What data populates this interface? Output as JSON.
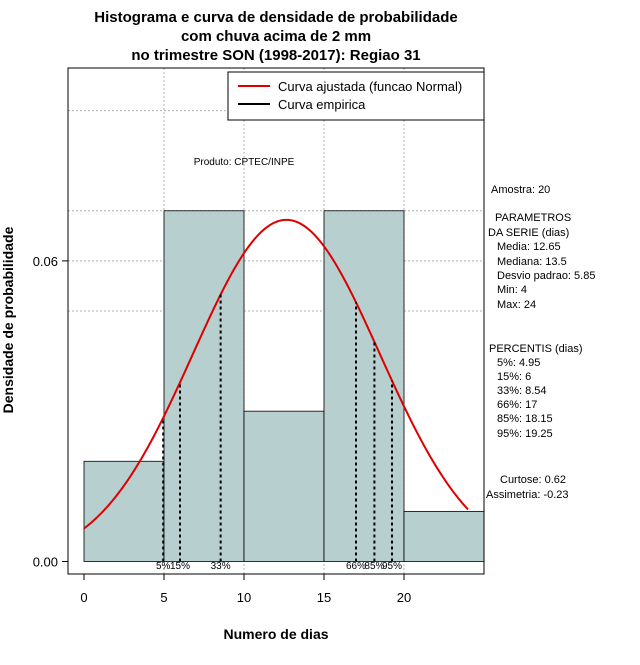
{
  "chart_data": {
    "type": "bar",
    "title_lines": [
      "Histograma e curva de densidade de probabilidade",
      "com chuva acima de 2 mm",
      "no trimestre SON (1998-2017): Regiao 31"
    ],
    "xlabel": "Numero de dias",
    "ylabel": "Densidade de probabilidade",
    "xlim": [
      -1,
      25
    ],
    "ylim": [
      -0.0025,
      0.0985
    ],
    "x_ticks": [
      0,
      5,
      10,
      15,
      20
    ],
    "y_ticks": [
      0.0,
      0.06
    ],
    "y_tick_labels": [
      "0.00",
      "0.06"
    ],
    "grid": true,
    "grid_x": [
      5,
      10,
      15,
      20
    ],
    "grid_y": [
      0.05,
      0.06,
      0.07,
      0.09
    ],
    "bins": [
      {
        "x0": 0,
        "x1": 5,
        "density": 0.02
      },
      {
        "x0": 5,
        "x1": 10,
        "density": 0.07
      },
      {
        "x0": 10,
        "x1": 15,
        "density": 0.03
      },
      {
        "x0": 15,
        "x1": 20,
        "density": 0.07
      },
      {
        "x0": 20,
        "x1": 25,
        "density": 0.01
      }
    ],
    "normal_curve": {
      "mean": 12.65,
      "sd": 5.85,
      "x_from": 0,
      "x_to": 24,
      "color": "#dd0000"
    },
    "bar_color": "#b7cfcf",
    "percentile_lines": [
      {
        "label": "5%",
        "x": 4.95
      },
      {
        "label": "15%",
        "x": 6
      },
      {
        "label": "33%",
        "x": 8.54
      },
      {
        "label": "66%",
        "x": 17
      },
      {
        "label": "85%",
        "x": 18.15
      },
      {
        "label": "95%",
        "x": 19.25
      }
    ],
    "legend": {
      "placement": "top-right",
      "entries": [
        {
          "label": "Curva ajustada (funcao Normal)",
          "color": "#dd0000"
        },
        {
          "label": "Curva empirica",
          "color": "#000000"
        }
      ]
    },
    "annotation": "Produto: CPTEC/INPE"
  },
  "stats_panel": {
    "amostra": "Amostra: 20",
    "parametros_title_1": "PARAMETROS",
    "parametros_title_2": "DA SERIE (dias)",
    "media": "Media: 12.65",
    "mediana": "Mediana: 13.5",
    "desvio": "Desvio padrao: 5.85",
    "min": "Min: 4",
    "max": "Max: 24",
    "percentis_title": "PERCENTIS (dias)",
    "p5": "5%: 4.95",
    "p15": "15%: 6",
    "p33": "33%: 8.54",
    "p66": "66%: 17",
    "p85": "85%: 18.15",
    "p95": "95%: 19.25",
    "curtose": "Curtose: 0.62",
    "assimetria": "Assimetria: -0.23"
  }
}
